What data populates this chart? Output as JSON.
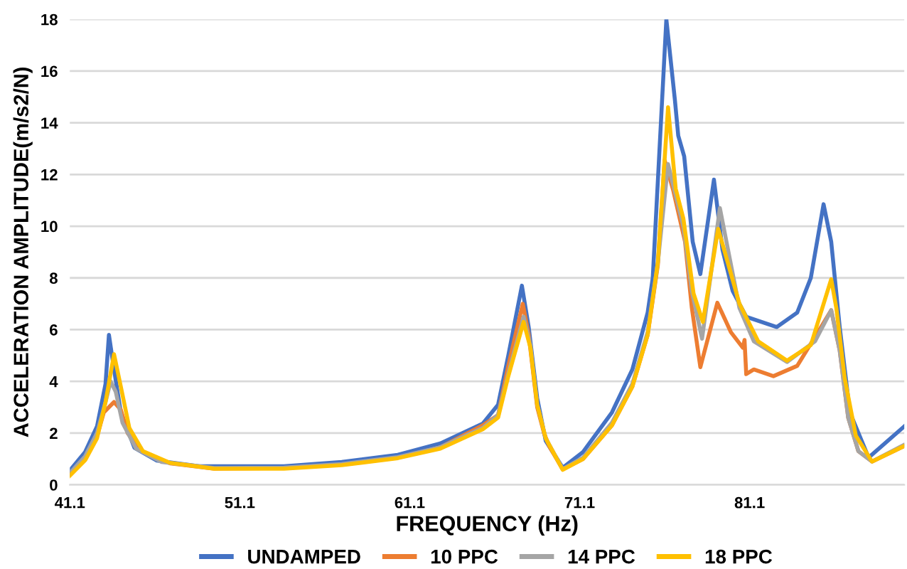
{
  "chart_data": {
    "type": "line",
    "xlabel": "FREQUENCY (Hz)",
    "ylabel": "ACCELERATION AMPLITUDE(m/s2/N)",
    "xlim": [
      41.1,
      90.2
    ],
    "xticks": [
      41.1,
      51.1,
      61.1,
      71.1,
      81.1
    ],
    "ylim": [
      0,
      18
    ],
    "yticks": [
      0,
      2,
      4,
      6,
      8,
      10,
      12,
      14,
      16,
      18
    ],
    "grid": "y",
    "legend": "bottom",
    "marker": "none",
    "line_style": "solid",
    "series": [
      {
        "name": "UNDAMPED",
        "color": "#4472c4",
        "x": [
          41.1,
          42.0,
          42.7,
          43.2,
          43.4,
          43.7,
          44.1,
          44.9,
          46.2,
          48.7,
          53.7,
          57.1,
          60.4,
          62.9,
          65.4,
          66.3,
          66.9,
          67.7,
          68.1,
          68.6,
          69.1,
          70.1,
          71.3,
          73.0,
          74.2,
          75.1,
          75.4,
          75.8,
          76.2,
          76.7,
          76.9,
          77.25,
          77.75,
          78.2,
          79.0,
          79.5,
          80.1,
          80.9,
          82.7,
          83.9,
          84.7,
          85.45,
          85.9,
          86.4,
          87.0,
          88.1,
          90.2
        ],
        "values": [
          0.55,
          1.27,
          2.26,
          3.9,
          5.8,
          4.46,
          2.8,
          1.43,
          0.94,
          0.72,
          0.72,
          0.88,
          1.16,
          1.6,
          2.37,
          3.1,
          5.0,
          7.7,
          6.1,
          3.36,
          1.7,
          0.66,
          1.27,
          2.8,
          4.46,
          6.66,
          8.0,
          13.0,
          18.0,
          14.9,
          13.5,
          12.7,
          9.4,
          8.15,
          11.8,
          9.1,
          7.5,
          6.5,
          6.1,
          6.66,
          8.0,
          10.85,
          9.4,
          6.1,
          2.8,
          1.05,
          2.26
        ]
      },
      {
        "name": "10 PPC",
        "color": "#ed7d31",
        "x": [
          41.1,
          42.0,
          42.7,
          43.1,
          43.7,
          44.1,
          44.5,
          45.4,
          47.0,
          49.6,
          53.7,
          57.1,
          60.4,
          62.9,
          65.4,
          66.3,
          66.9,
          67.75,
          68.1,
          68.6,
          69.0,
          69.3,
          70.1,
          71.3,
          73.0,
          74.2,
          75.1,
          75.7,
          76.1,
          76.6,
          77.3,
          77.7,
          78.2,
          79.2,
          80.0,
          80.7,
          80.8,
          80.9,
          81.35,
          82.5,
          83.9,
          85.3,
          85.9,
          86.4,
          86.9,
          87.5,
          88.3,
          90.2
        ],
        "values": [
          0.4,
          1.05,
          1.87,
          2.8,
          3.2,
          2.9,
          2.0,
          1.27,
          0.83,
          0.62,
          0.65,
          0.78,
          1.05,
          1.45,
          2.3,
          2.7,
          4.6,
          7.0,
          5.8,
          3.0,
          2.0,
          1.5,
          0.6,
          1.0,
          2.3,
          3.8,
          5.8,
          8.5,
          12.55,
          11.4,
          9.4,
          6.84,
          4.55,
          7.04,
          5.9,
          5.3,
          5.6,
          4.28,
          4.46,
          4.2,
          4.6,
          6.1,
          6.75,
          5.2,
          2.6,
          1.3,
          0.9,
          1.5
        ]
      },
      {
        "name": "14 PPC",
        "color": "#a5a5a5",
        "x": [
          41.1,
          42.0,
          42.7,
          43.2,
          43.5,
          43.8,
          44.2,
          45.0,
          46.5,
          49.6,
          53.7,
          57.1,
          60.4,
          62.9,
          65.4,
          66.3,
          66.9,
          67.8,
          68.2,
          68.6,
          69.1,
          70.1,
          71.3,
          73.0,
          74.2,
          75.1,
          75.7,
          76.3,
          77.2,
          77.7,
          78.3,
          79.35,
          80.5,
          81.35,
          83.3,
          84.95,
          85.9,
          86.4,
          86.9,
          87.5,
          88.3,
          90.2
        ],
        "values": [
          0.45,
          1.1,
          2.0,
          3.2,
          4.0,
          3.6,
          2.4,
          1.4,
          0.88,
          0.65,
          0.66,
          0.8,
          1.07,
          1.45,
          2.2,
          2.7,
          4.3,
          6.5,
          5.4,
          3.1,
          1.8,
          0.6,
          1.05,
          2.4,
          3.9,
          5.9,
          8.6,
          12.4,
          10.0,
          7.5,
          5.65,
          10.7,
          6.84,
          5.55,
          4.75,
          5.55,
          6.75,
          5.2,
          2.6,
          1.3,
          0.9,
          1.55
        ]
      },
      {
        "name": "18 PPC",
        "color": "#ffc000",
        "x": [
          41.1,
          42.0,
          42.7,
          43.2,
          43.7,
          44.1,
          44.6,
          45.4,
          47.0,
          49.6,
          53.7,
          57.1,
          60.4,
          62.9,
          65.4,
          66.3,
          66.9,
          67.8,
          68.2,
          68.6,
          69.1,
          70.1,
          71.3,
          73.0,
          74.2,
          75.1,
          75.7,
          76.3,
          76.75,
          77.2,
          77.8,
          78.35,
          79.25,
          80.5,
          81.6,
          83.3,
          84.7,
          85.9,
          86.2,
          86.7,
          87.35,
          88.3,
          90.2
        ],
        "values": [
          0.35,
          0.95,
          1.8,
          3.2,
          5.05,
          3.8,
          2.2,
          1.3,
          0.85,
          0.62,
          0.62,
          0.76,
          1.03,
          1.4,
          2.15,
          2.6,
          4.2,
          6.3,
          5.3,
          3.1,
          1.8,
          0.58,
          1.0,
          2.3,
          3.8,
          5.8,
          8.6,
          14.6,
          11.45,
          10.3,
          7.4,
          6.3,
          9.9,
          7.0,
          5.55,
          4.8,
          5.4,
          7.95,
          6.84,
          4.1,
          1.9,
          0.9,
          1.5
        ]
      }
    ]
  }
}
